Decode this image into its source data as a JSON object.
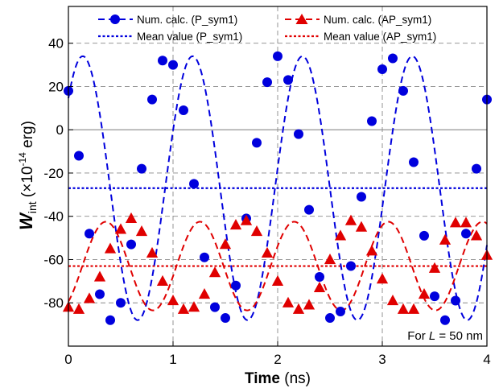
{
  "chart_data": {
    "type": "line",
    "xlabel_bold": "Time",
    "xlabel_unit": " (ns)",
    "ylabel_main": "W",
    "ylabel_sub": "int",
    "ylabel_pre": " (×10",
    "ylabel_exp": "-14",
    "ylabel_post": " erg)",
    "xlim": [
      0,
      4
    ],
    "ylim": [
      -100,
      57
    ],
    "x_ticks": [
      "0",
      "1",
      "2",
      "3",
      "4"
    ],
    "y_ticks": [
      "40",
      "20",
      "0",
      "-20",
      "-40",
      "-60",
      "-80"
    ],
    "grid": true,
    "legend_position": "top",
    "annotation_prefix": "For ",
    "annotation_var": "L",
    "annotation_suffix": " = 50 nm",
    "colors": {
      "p": "#0000dd",
      "ap": "#e00000",
      "zero": "#888888",
      "grid": "#888888"
    },
    "series": [
      {
        "name": "Num. calc. (P_sym1)",
        "kind": "points",
        "marker": "circle",
        "x": [
          0,
          0.1,
          0.2,
          0.3,
          0.4,
          0.5,
          0.6,
          0.7,
          0.8,
          0.9,
          1.0,
          1.1,
          1.2,
          1.3,
          1.4,
          1.5,
          1.6,
          1.7,
          1.8,
          1.9,
          2.0,
          2.1,
          2.2,
          2.3,
          2.4,
          2.5,
          2.6,
          2.7,
          2.8,
          2.9,
          3.0,
          3.1,
          3.2,
          3.3,
          3.4,
          3.5,
          3.6,
          3.7,
          3.8,
          3.9,
          4.0
        ],
        "y": [
          18,
          -12,
          -48,
          -76,
          -88,
          -80,
          -53,
          -18,
          14,
          32,
          30,
          9,
          -25,
          -59,
          -82,
          -87,
          -72,
          -41,
          -6,
          22,
          34,
          23,
          -2,
          -37,
          -68,
          -87,
          -84,
          -63,
          -31,
          4,
          28,
          33,
          18,
          -15,
          -49,
          -77,
          -88,
          -79,
          -48,
          -18,
          14
        ]
      },
      {
        "name": "Num. calc. (AP_sym1)",
        "kind": "points",
        "marker": "triangle",
        "x": [
          0,
          0.1,
          0.2,
          0.3,
          0.4,
          0.5,
          0.6,
          0.7,
          0.8,
          0.9,
          1.0,
          1.1,
          1.2,
          1.3,
          1.4,
          1.5,
          1.6,
          1.7,
          1.8,
          1.9,
          2.0,
          2.1,
          2.2,
          2.3,
          2.4,
          2.5,
          2.6,
          2.7,
          2.8,
          2.9,
          3.0,
          3.1,
          3.2,
          3.3,
          3.4,
          3.5,
          3.6,
          3.7,
          3.8,
          3.9,
          4.0
        ],
        "y": [
          -82,
          -83,
          -78,
          -68,
          -55,
          -46,
          -41,
          -47,
          -57,
          -70,
          -79,
          -83,
          -82,
          -76,
          -66,
          -53,
          -44,
          -42,
          -47,
          -57,
          -70,
          -80,
          -83,
          -81,
          -73,
          -60,
          -49,
          -42,
          -45,
          -56,
          -69,
          -79,
          -83,
          -83,
          -76,
          -64,
          -51,
          -43,
          -43,
          -49,
          -58
        ]
      },
      {
        "name": "Mean value (P_sym1)",
        "kind": "mean",
        "y": -27
      },
      {
        "name": "Mean value (AP_sym1)",
        "kind": "mean",
        "y": -63
      }
    ],
    "fit_curves": [
      {
        "for": "Num. calc. (P_sym1)",
        "mean": -27,
        "amp": 61,
        "period": 1.05,
        "phase": 0.82
      },
      {
        "for": "Num. calc. (AP_sym1)",
        "mean": -63,
        "amp": 20.5,
        "period": 0.9,
        "phase": 2.5
      }
    ]
  }
}
